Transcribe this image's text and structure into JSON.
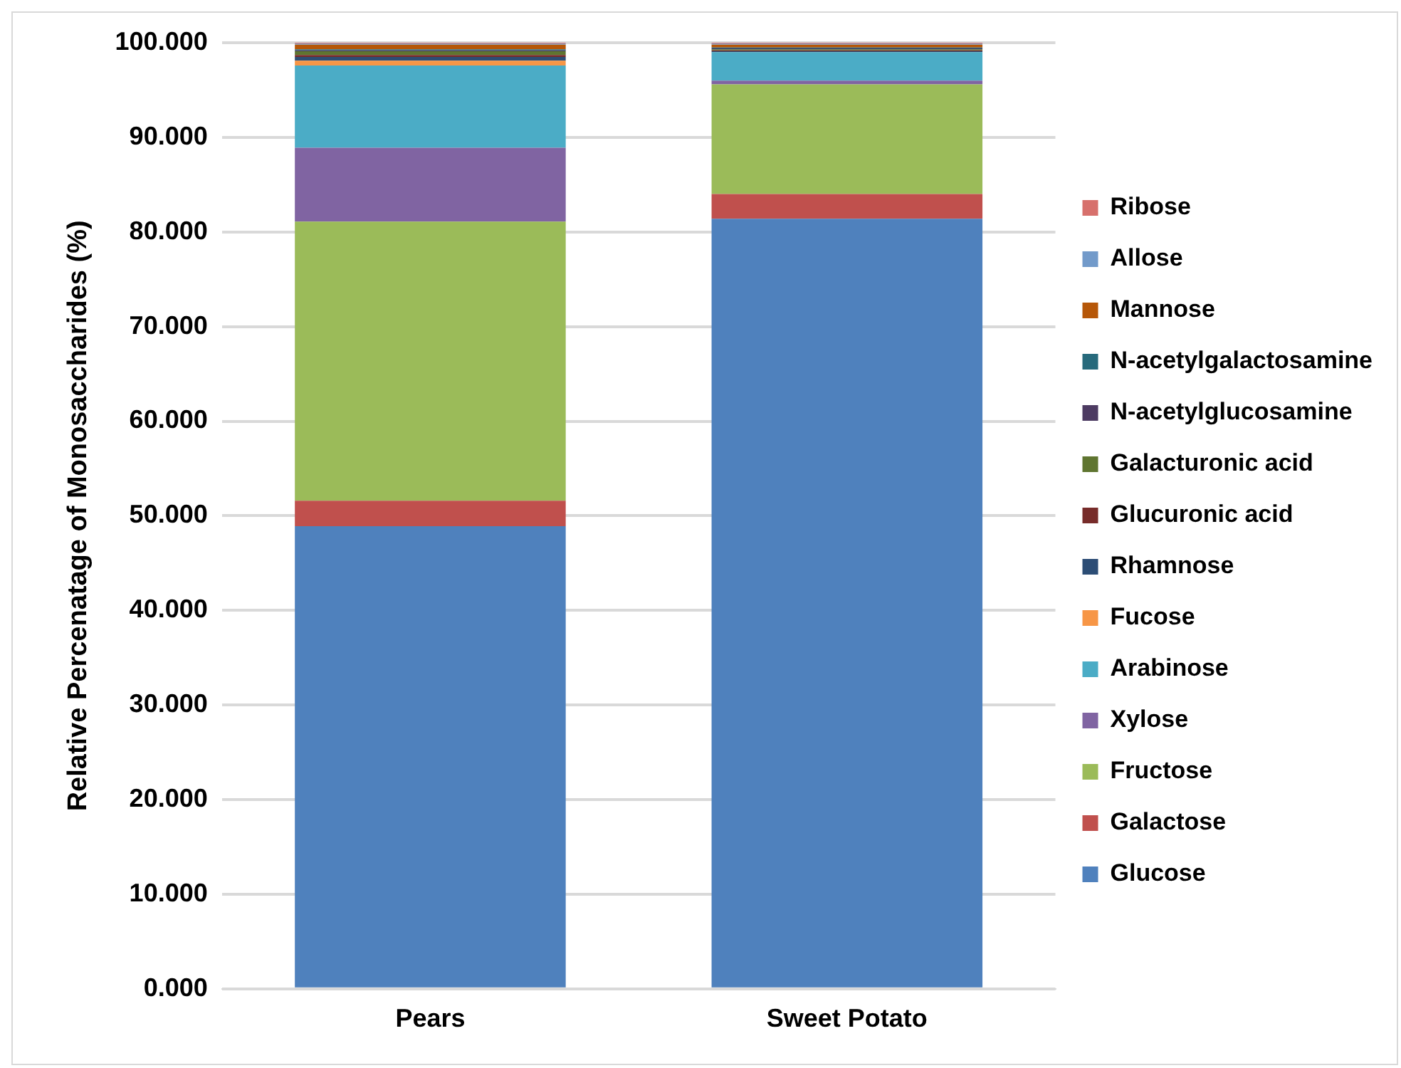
{
  "chart_data": {
    "type": "bar",
    "stacked": true,
    "ylabel": "Relative Percenatage of Monosaccharides (%)",
    "categories": [
      "Pears",
      "Sweet Potato"
    ],
    "series": [
      {
        "name": "Glucose",
        "color": "#4f81bd",
        "values": [
          48.9,
          81.4
        ]
      },
      {
        "name": "Galactose",
        "color": "#c0504d",
        "values": [
          2.7,
          2.6
        ]
      },
      {
        "name": "Fructose",
        "color": "#9bbb59",
        "values": [
          29.5,
          11.6
        ]
      },
      {
        "name": "Xylose",
        "color": "#8064a2",
        "values": [
          7.8,
          0.4
        ]
      },
      {
        "name": "Arabinose",
        "color": "#4bacc6",
        "values": [
          8.7,
          3.0
        ]
      },
      {
        "name": "Fucose",
        "color": "#f79646",
        "values": [
          0.5,
          0
        ]
      },
      {
        "name": "Rhamnose",
        "color": "#2c4d75",
        "values": [
          0.4,
          0.1
        ]
      },
      {
        "name": "Glucuronic acid",
        "color": "#772c2a",
        "values": [
          0.2,
          0.1
        ]
      },
      {
        "name": "Galacturonic acid",
        "color": "#5f7530",
        "values": [
          0.4,
          0.1
        ]
      },
      {
        "name": "N-acetylglucosamine",
        "color": "#4d3b62",
        "values": [
          0.1,
          0.1
        ]
      },
      {
        "name": "N-acetylgalactosamine",
        "color": "#276a7c",
        "values": [
          0.1,
          0.1
        ]
      },
      {
        "name": "Mannose",
        "color": "#b65708",
        "values": [
          0.5,
          0.3
        ]
      },
      {
        "name": "Allose",
        "color": "#729aca",
        "values": [
          0.1,
          0.1
        ]
      },
      {
        "name": "Ribose",
        "color": "#d7706c",
        "values": [
          0.1,
          0.1
        ]
      }
    ],
    "ylim": [
      0,
      100
    ],
    "yticks": [
      {
        "value": 0,
        "label": "0.000"
      },
      {
        "value": 10,
        "label": "10.000"
      },
      {
        "value": 20,
        "label": "20.000"
      },
      {
        "value": 30,
        "label": "30.000"
      },
      {
        "value": 40,
        "label": "40.000"
      },
      {
        "value": 50,
        "label": "50.000"
      },
      {
        "value": 60,
        "label": "60.000"
      },
      {
        "value": 70,
        "label": "70.000"
      },
      {
        "value": 80,
        "label": "80.000"
      },
      {
        "value": 90,
        "label": "90.000"
      },
      {
        "value": 100,
        "label": "100.000"
      }
    ],
    "grid": "y",
    "legend": "right"
  }
}
